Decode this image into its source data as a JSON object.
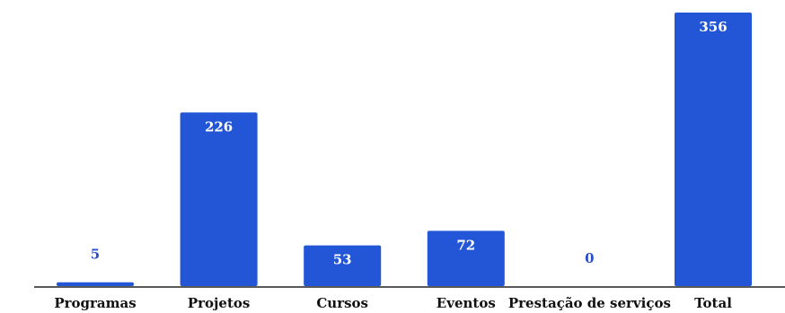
{
  "chart_data": {
    "type": "bar",
    "categories": [
      "Programas",
      "Projetos",
      "Cursos",
      "Eventos",
      "Prestação de serviços",
      "Total"
    ],
    "values": [
      5,
      226,
      53,
      72,
      0,
      356
    ],
    "title": "",
    "xlabel": "",
    "ylabel": "",
    "ylim": [
      0,
      356
    ],
    "grid": false,
    "data_labels": true,
    "bar_color": "#2356d6",
    "label_color_inside": "#ffffff",
    "label_color_outside": "#2a4fc9"
  }
}
